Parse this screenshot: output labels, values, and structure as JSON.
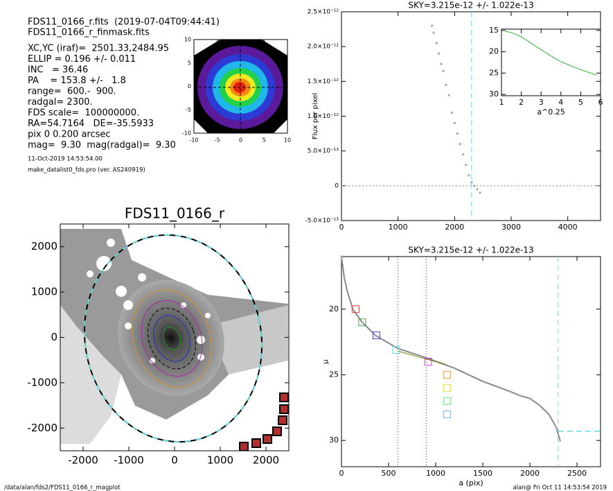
{
  "info": {
    "lines": [
      "FDS11_0166_r.fits  (2019-07-04T09:44:41)",
      "FDS11_0166_r_finmask.fits",
      "XC,YC (iraf)=  2501.33,2484.95",
      "ELLIP = 0.196 +/- 0.011",
      "INC   = 36.46",
      "PA    = 153.8 +/-   1.8",
      "range=  600.-  900.",
      "radgal= 2300.",
      "FDS scale=  100000000.",
      "RA=54.7164   DE=-35.5933",
      "pix 0 0.200 arcsec",
      "mag=  9.30  mag(radgal)=  9.30"
    ],
    "footnotes": [
      "11-Oct-2019 14:53:54.00",
      "make_datalist0_fds.pro (ver. AS240919)"
    ]
  },
  "footer": {
    "left": "/data/alan/fds2/FDS11_0166_r_magplot",
    "right": "alan@  Fri Oct 11 14:53:54 2019"
  },
  "chart_data": [
    {
      "type": "image",
      "xlim": [
        -10,
        10
      ],
      "ylim": [
        -10,
        10
      ],
      "xticks": [
        -10,
        -5,
        0,
        5,
        10
      ],
      "yticks": [
        -10,
        -5,
        0,
        5,
        10
      ]
    },
    {
      "type": "scatter",
      "title": "SKY=3.215e-12 +/- 1.022e-13",
      "ylabel": "Flux per pixel",
      "x": [
        1600,
        1630,
        1680,
        1720,
        1760,
        1800,
        1850,
        1900,
        1950,
        2000,
        2050,
        2100,
        2150,
        2200,
        2250,
        2300,
        2350,
        2400,
        2450
      ],
      "values": [
        2.3e-12,
        2.2e-12,
        2.05e-12,
        1.9e-12,
        1.75e-12,
        1.65e-12,
        1.45e-12,
        1.3e-12,
        1.05e-12,
        9e-13,
        7.5e-13,
        6e-13,
        4.5e-13,
        3e-13,
        1.5e-13,
        5e-14,
        0,
        -5e-14,
        -1e-13
      ],
      "color": "#aaaaaa",
      "vline": 2300,
      "hline": 0,
      "xlim": [
        0,
        4580
      ],
      "ylim": [
        -5e-13,
        2.5e-12
      ],
      "xticks": [
        0,
        1000,
        2000,
        3000,
        4000
      ],
      "yticks": [
        {
          "value": -5e-13,
          "label": "-5.0×10⁻¹³"
        },
        0,
        {
          "value": 5e-13,
          "label": "5.0×10⁻¹³"
        },
        {
          "value": 1e-12,
          "label": "1.0×10⁻¹²"
        },
        {
          "value": 1.5e-12,
          "label": "1.5×10⁻¹²"
        },
        {
          "value": 2e-12,
          "label": "2.0×10⁻¹²"
        },
        {
          "value": 2.5e-12,
          "label": "2.5×10⁻¹²"
        }
      ]
    },
    {
      "type": "line",
      "xlabel": "a^0.25",
      "x": [
        1.2,
        1.5,
        2,
        2.5,
        3,
        3.5,
        4,
        4.5,
        5,
        5.5,
        5.8
      ],
      "values": [
        15.2,
        15.5,
        16.5,
        18,
        19.5,
        21,
        22.3,
        23.3,
        24.2,
        25,
        25.5
      ],
      "color": "#33aa33",
      "xlim": [
        1,
        6
      ],
      "ylim": [
        30.3,
        14.7
      ],
      "xticks": [
        1,
        2,
        3,
        4,
        5,
        6
      ],
      "yticks": [
        15,
        20,
        25,
        30
      ]
    },
    {
      "type": "image",
      "title": "FDS11_0166_r",
      "xlim": [
        -2500,
        2500
      ],
      "ylim": [
        -2500,
        2500
      ],
      "xticks": [
        -2000,
        -1000,
        0,
        1000,
        2000
      ],
      "yticks": [
        -2000,
        -1000,
        0,
        1000,
        2000
      ]
    },
    {
      "type": "profile",
      "title": "SKY=3.215e-12 +/- 1.022e-13",
      "xlabel": "a (pix)",
      "ylabel": "μ",
      "x": [
        0,
        30,
        60,
        120,
        220,
        360,
        600,
        900,
        1050,
        1200,
        1350,
        1500,
        1650,
        1800,
        1900,
        2000,
        2100,
        2200,
        2280,
        2320
      ],
      "values": [
        16.0,
        17.6,
        18.6,
        20.0,
        21.0,
        22.0,
        23.0,
        23.7,
        24.1,
        24.5,
        25.0,
        25.5,
        25.9,
        26.3,
        26.6,
        26.8,
        27.3,
        28.0,
        29.0,
        30.0
      ],
      "color": "#888888",
      "fit": {
        "x": [
          600,
          700,
          800,
          900,
          1000,
          1100
        ],
        "values": [
          23.2,
          23.4,
          23.6,
          23.8,
          24.0,
          24.2
        ],
        "color": "#777700"
      },
      "markers": {
        "x": [
          150,
          220,
          370,
          580,
          920,
          1120,
          1120,
          1120,
          1120
        ],
        "values": [
          20.0,
          21.0,
          22.0,
          23.1,
          24.0,
          25.0,
          26.0,
          27.0,
          28.0
        ],
        "colors": [
          "#dd4444",
          "#44aa44",
          "#4444bb",
          "#66dddd",
          "#cc44cc",
          "#ee9933",
          "#dddd44",
          "#66ee88",
          "#77aaee"
        ]
      },
      "vlines": [
        600,
        900
      ],
      "sky_x": 2300,
      "sky_mu": 29.3,
      "xlim": [
        0,
        2750
      ],
      "ylim": [
        32,
        16
      ],
      "xticks": [
        0,
        500,
        1000,
        1500,
        2000,
        2500
      ],
      "yticks": [
        20,
        25,
        30
      ]
    }
  ]
}
